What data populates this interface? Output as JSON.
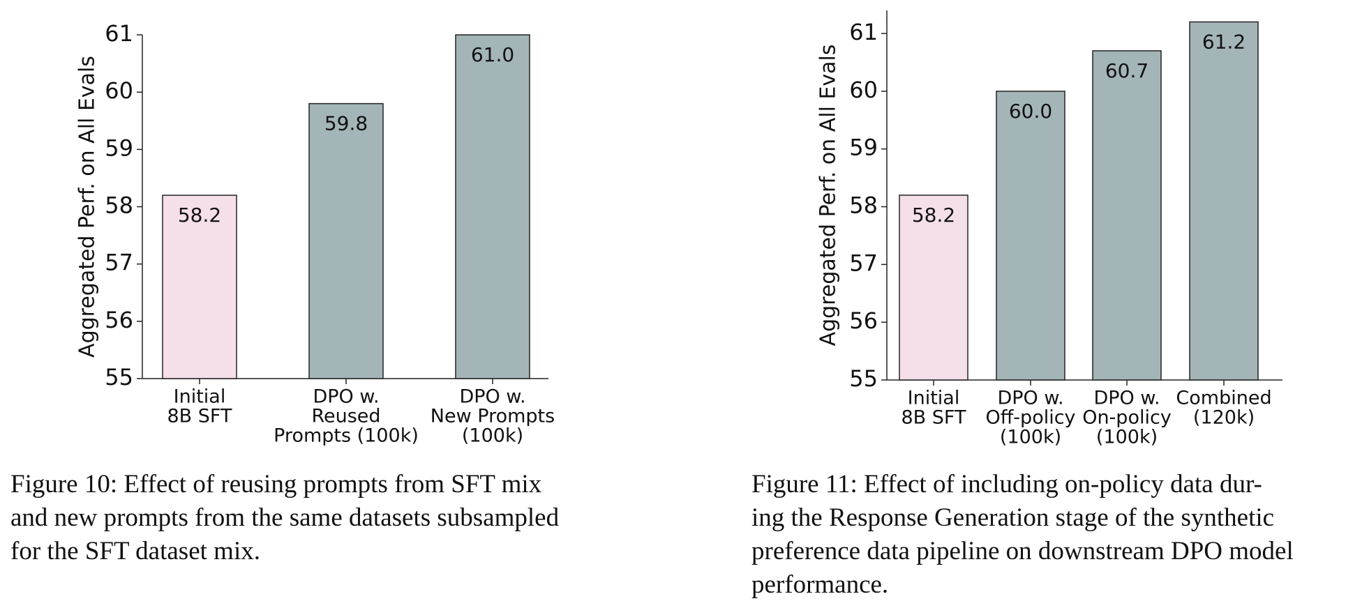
{
  "chart_data": [
    {
      "type": "bar",
      "ylabel": "Aggregated Perf. on All Evals",
      "categories": [
        [
          "Initial",
          "8B SFT"
        ],
        [
          "DPO w.",
          "Reused",
          "Prompts (100k)"
        ],
        [
          "DPO w.",
          "New Prompts",
          "(100k)"
        ]
      ],
      "values": [
        58.2,
        59.8,
        61
      ],
      "value_labels": [
        "58.2",
        "59.8",
        "61.0"
      ],
      "colors": [
        "#f5dfe9",
        "#a4b5b7",
        "#a4b5b7"
      ],
      "ylim": [
        55,
        61
      ],
      "yticks": [
        55,
        56,
        57,
        58,
        59,
        60,
        61
      ],
      "caption": [
        "Figure 10:  Effect of reusing prompts from SFT mix",
        "and new prompts from the same datasets subsampled",
        "for the SFT dataset mix."
      ]
    },
    {
      "type": "bar",
      "ylabel": "Aggregated Perf. on All Evals",
      "categories": [
        [
          "Initial",
          "8B SFT"
        ],
        [
          "DPO w.",
          "Off-policy",
          "(100k)"
        ],
        [
          "DPO w.",
          "On-policy",
          "(100k)"
        ],
        [
          "Combined",
          "(120k)"
        ]
      ],
      "values": [
        58.2,
        60,
        60.7,
        61.2
      ],
      "value_labels": [
        "58.2",
        "60.0",
        "60.7",
        "61.2"
      ],
      "colors": [
        "#f5dfe9",
        "#a4b5b7",
        "#a4b5b7",
        "#a4b5b7"
      ],
      "ylim": [
        55,
        61.4
      ],
      "yticks": [
        55,
        56,
        57,
        58,
        59,
        60,
        61
      ],
      "caption": [
        "Figure 11:  Effect of including on-policy data dur-",
        "ing the Response Generation stage of the synthetic",
        "preference data pipeline on downstream DPO model",
        "performance."
      ]
    }
  ]
}
